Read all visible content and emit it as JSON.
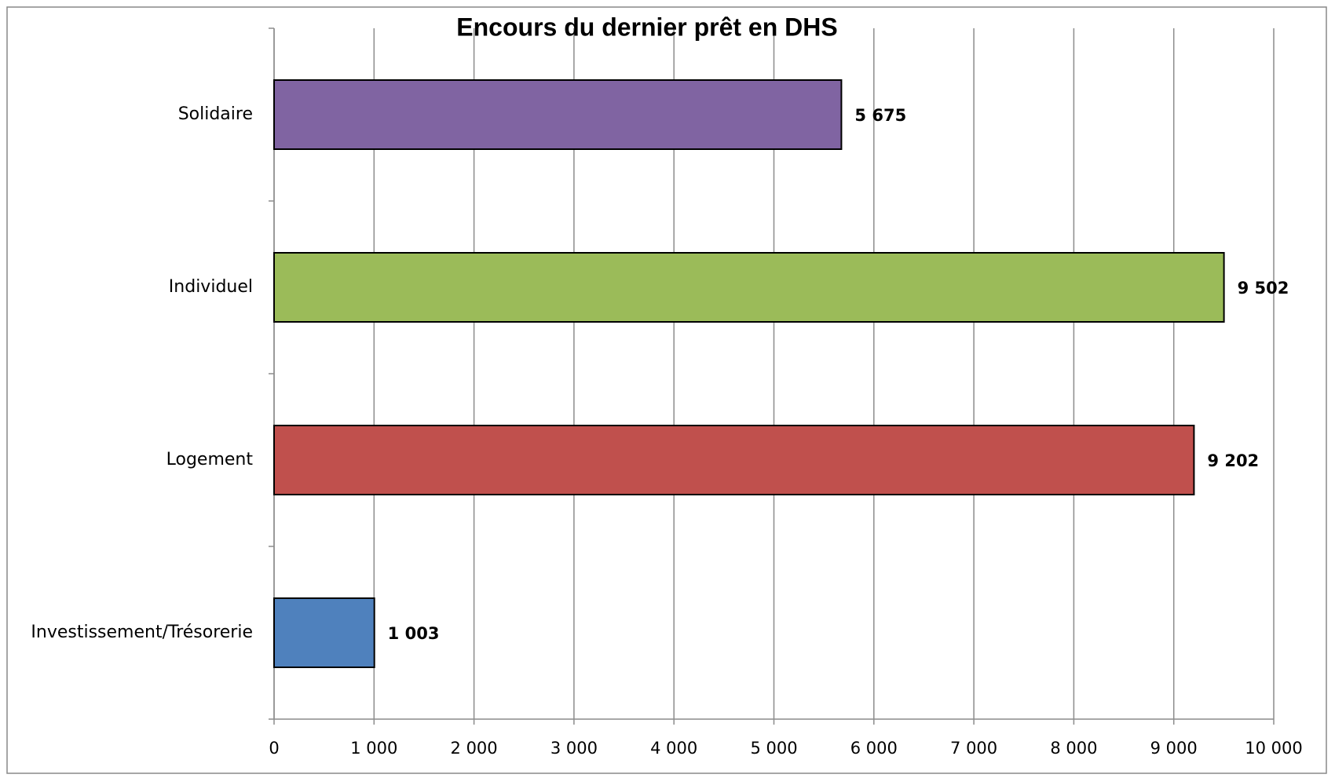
{
  "chart_data": {
    "type": "bar",
    "orientation": "horizontal",
    "title": "Encours du dernier prêt en DHS",
    "categories": [
      "Solidaire",
      "Individuel",
      "Logement",
      "Investissement/Trésorerie"
    ],
    "values": [
      5675,
      9502,
      9202,
      1003
    ],
    "value_labels": [
      "5 675",
      "9 502",
      "9 202",
      "1 003"
    ],
    "colors": [
      "#8064a2",
      "#9bbb59",
      "#c0504d",
      "#4f81bd"
    ],
    "xlim": [
      0,
      10000
    ],
    "xticks": [
      0,
      {
        "value": 1000,
        "label": "1 000"
      },
      {
        "value": 2000,
        "label": "2 000"
      },
      {
        "value": 3000,
        "label": "3 000"
      },
      {
        "value": 4000,
        "label": "4 000"
      },
      {
        "value": 5000,
        "label": "5 000"
      },
      {
        "value": 6000,
        "label": "6 000"
      },
      {
        "value": 7000,
        "label": "7 000"
      },
      {
        "value": 8000,
        "label": "8 000"
      },
      {
        "value": 9000,
        "label": "9 000"
      },
      {
        "value": 10000,
        "label": "10 000"
      }
    ],
    "grid": true
  }
}
